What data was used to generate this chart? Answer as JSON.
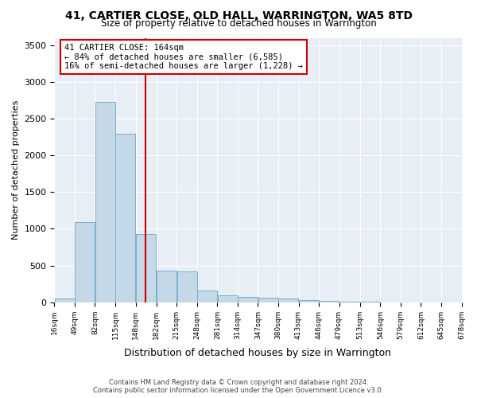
{
  "title": "41, CARTIER CLOSE, OLD HALL, WARRINGTON, WA5 8TD",
  "subtitle": "Size of property relative to detached houses in Warrington",
  "xlabel": "Distribution of detached houses by size in Warrington",
  "ylabel": "Number of detached properties",
  "bar_color": "#c5d8e8",
  "bar_edge_color": "#7aafc8",
  "bg_color": "#e8eef5",
  "grid_color": "#ffffff",
  "vline_x": 164,
  "vline_color": "#cc0000",
  "annotation_text": "41 CARTIER CLOSE: 164sqm\n← 84% of detached houses are smaller (6,585)\n16% of semi-detached houses are larger (1,228) →",
  "annotation_box_color": "#cc0000",
  "bin_edges": [
    16,
    49,
    82,
    115,
    148,
    182,
    215,
    248,
    281,
    314,
    347,
    380,
    413,
    446,
    479,
    513,
    546,
    579,
    612,
    645,
    678
  ],
  "bin_labels": [
    "16sqm",
    "49sqm",
    "82sqm",
    "115sqm",
    "148sqm",
    "182sqm",
    "215sqm",
    "248sqm",
    "281sqm",
    "314sqm",
    "347sqm",
    "380sqm",
    "413sqm",
    "446sqm",
    "479sqm",
    "513sqm",
    "546sqm",
    "579sqm",
    "612sqm",
    "645sqm",
    "678sqm"
  ],
  "bar_heights": [
    50,
    1090,
    2730,
    2290,
    930,
    430,
    425,
    165,
    100,
    75,
    60,
    50,
    35,
    15,
    10,
    5,
    3,
    2,
    1,
    1
  ],
  "ylim": [
    0,
    3600
  ],
  "yticks": [
    0,
    500,
    1000,
    1500,
    2000,
    2500,
    3000,
    3500
  ],
  "footnote": "Contains HM Land Registry data © Crown copyright and database right 2024.\nContains public sector information licensed under the Open Government Licence v3.0."
}
